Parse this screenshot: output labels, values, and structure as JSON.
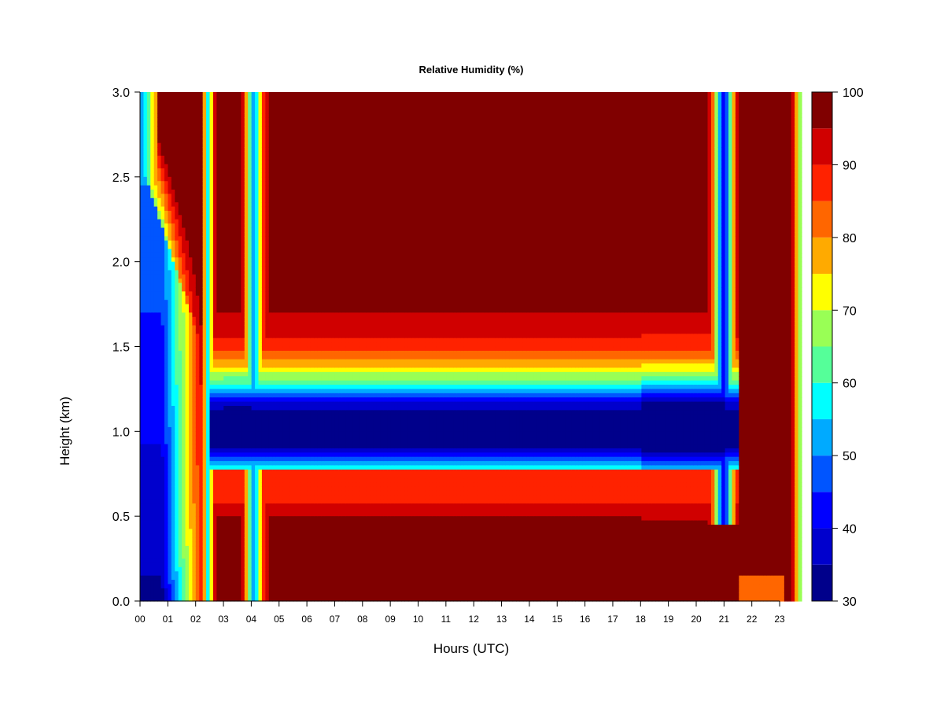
{
  "chart_data": {
    "type": "heatmap",
    "title": "Relative Humidity (%)",
    "xlabel": "Hours (UTC)",
    "ylabel": "Height (km)",
    "x_ticks": [
      "00",
      "01",
      "02",
      "03",
      "04",
      "05",
      "06",
      "07",
      "08",
      "09",
      "10",
      "11",
      "12",
      "13",
      "14",
      "15",
      "16",
      "17",
      "18",
      "19",
      "20",
      "21",
      "22",
      "23"
    ],
    "y_ticks": [
      "0.0",
      "0.5",
      "1.0",
      "1.5",
      "2.0",
      "2.5",
      "3.0"
    ],
    "xlim": [
      0,
      24
    ],
    "ylim": [
      0,
      3.0
    ],
    "colorbar": {
      "range": [
        30,
        100
      ],
      "ticks": [
        "30",
        "40",
        "50",
        "60",
        "70",
        "80",
        "90",
        "100"
      ],
      "levels": [
        30,
        35,
        40,
        45,
        50,
        55,
        60,
        65,
        70,
        75,
        80,
        85,
        90,
        95,
        100
      ],
      "colors": [
        "#00008B",
        "#0000CD",
        "#0000FF",
        "#0055FF",
        "#00AAFF",
        "#00FFFF",
        "#55FF99",
        "#99FF55",
        "#FFFF00",
        "#FFAA00",
        "#FF6600",
        "#FF2200",
        "#D00000",
        "#800000"
      ]
    },
    "description_features": {
      "moist_layer_top_km": 3.0,
      "dry_layer_center_km": 1.0,
      "saturated_band_km": [
        0.05,
        0.3
      ]
    }
  }
}
